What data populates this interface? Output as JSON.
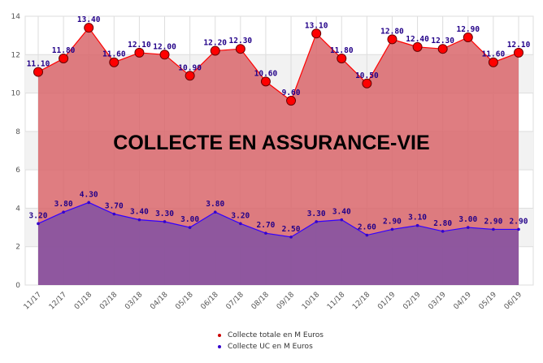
{
  "chart_data": {
    "type": "area",
    "title": "COLLECTE EN ASSURANCE-VIE",
    "categories": [
      "11/17",
      "12/17",
      "01/18",
      "02/18",
      "03/18",
      "04/18",
      "05/18",
      "06/18",
      "07/18",
      "08/18",
      "09/18",
      "10/18",
      "11/18",
      "12/18",
      "01/19",
      "02/19",
      "03/19",
      "04/19",
      "05/19",
      "06/19"
    ],
    "series": [
      {
        "name": "Collecte totale en M Euros",
        "color": "#ff0000",
        "fill": "#d9666b",
        "values": [
          11.1,
          11.8,
          13.4,
          11.6,
          12.1,
          12.0,
          10.9,
          12.2,
          12.3,
          10.6,
          9.6,
          13.1,
          11.8,
          10.5,
          12.8,
          12.4,
          12.3,
          12.9,
          11.6,
          12.1
        ]
      },
      {
        "name": "Collecte UC en M Euros",
        "color": "#3300ff",
        "fill": "#8a55a0",
        "values": [
          3.2,
          3.8,
          4.3,
          3.7,
          3.4,
          3.3,
          3.0,
          3.8,
          3.2,
          2.7,
          2.5,
          3.3,
          3.4,
          2.6,
          2.9,
          3.1,
          2.8,
          3.0,
          2.9,
          2.9
        ]
      }
    ],
    "ylim": [
      0,
      14
    ],
    "yticks": [
      0,
      2,
      4,
      6,
      8,
      10,
      12,
      14
    ],
    "grid": true,
    "legend_position": "bottom"
  }
}
